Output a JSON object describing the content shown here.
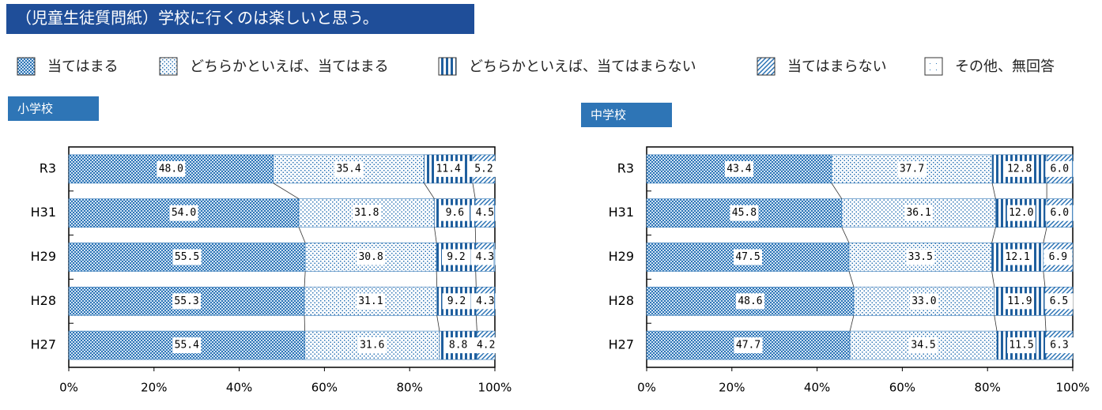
{
  "title": "（児童生徒質問紙）学校に行くのは楽しいと思う。",
  "chart_data": [
    {
      "type": "stacked-bar",
      "subtitle": "小学校",
      "categories": [
        "R3",
        "H31",
        "H29",
        "H28",
        "H27"
      ],
      "series": [
        {
          "name": "当てはまる",
          "color": "#2e75b6",
          "values": [
            48.0,
            54.0,
            55.5,
            55.3,
            55.4
          ],
          "value_labels": [
            "48.0",
            "54.0",
            "55.5",
            "55.3",
            "55.4"
          ]
        },
        {
          "name": "どちらかといえば、当てはまる",
          "color": "#2e75b6",
          "values": [
            35.4,
            31.8,
            30.8,
            31.1,
            31.6
          ],
          "value_labels": [
            "35.4",
            "31.8",
            "30.8",
            "31.1",
            "31.6"
          ]
        },
        {
          "name": "どちらかといえば、当てはまらない",
          "color": "#1f5f9e",
          "values": [
            11.4,
            9.6,
            9.2,
            9.2,
            8.8
          ],
          "value_labels": [
            "11.4",
            "9.6",
            "9.2",
            "9.2",
            "8.8"
          ]
        },
        {
          "name": "当てはまらない",
          "color": "#2e75b6",
          "values": [
            5.2,
            4.5,
            4.3,
            4.3,
            4.2
          ],
          "value_labels": [
            "5.2",
            "4.5",
            "4.3",
            "4.3",
            "4.2"
          ]
        },
        {
          "name": "その他、無回答",
          "color": "#2e75b6",
          "values": [
            0,
            0.1,
            0.2,
            0.1,
            0
          ]
        }
      ],
      "xlim": [
        0,
        100
      ],
      "xticks": [
        {
          "value": 0,
          "label": "0%"
        },
        {
          "value": 20,
          "label": "20%"
        },
        {
          "value": 40,
          "label": "40%"
        },
        {
          "value": 60,
          "label": "60%"
        },
        {
          "value": 80,
          "label": "80%"
        },
        {
          "value": 100,
          "label": "100%"
        }
      ]
    },
    {
      "type": "stacked-bar",
      "subtitle": "中学校",
      "categories": [
        "R3",
        "H31",
        "H29",
        "H28",
        "H27"
      ],
      "series": [
        {
          "color": "#2e75b6",
          "values": [
            43.4,
            45.8,
            47.5,
            48.6,
            47.7
          ],
          "value_labels": [
            "43.4",
            "45.8",
            "47.5",
            "48.6",
            "47.7"
          ]
        },
        {
          "color": "#2e75b6",
          "values": [
            37.7,
            36.1,
            33.5,
            33.0,
            34.5
          ],
          "value_labels": [
            "37.7",
            "36.1",
            "33.5",
            "33.0",
            "34.5"
          ]
        },
        {
          "color": "#1f5f9e",
          "values": [
            12.8,
            12.0,
            12.1,
            11.9,
            11.5
          ],
          "value_labels": [
            "12.8",
            "12.0",
            "12.1",
            "11.9",
            "11.5"
          ]
        },
        {
          "color": "#2e75b6",
          "values": [
            6.0,
            6.0,
            6.9,
            6.5,
            6.3
          ],
          "value_labels": [
            "6.0",
            "6.0",
            "6.9",
            "6.5",
            "6.3"
          ]
        },
        {
          "color": "#2e75b6",
          "values": [
            0.1,
            0.1,
            0,
            0,
            0
          ]
        }
      ],
      "xlim": [
        0,
        100
      ],
      "xticks": [
        {
          "value": 0,
          "label": "0%"
        },
        {
          "value": 20,
          "label": "20%"
        },
        {
          "value": 40,
          "label": "40%"
        },
        {
          "value": 60,
          "label": "60%"
        },
        {
          "value": 80,
          "label": "80%"
        },
        {
          "value": 100,
          "label": "100%"
        }
      ]
    }
  ]
}
